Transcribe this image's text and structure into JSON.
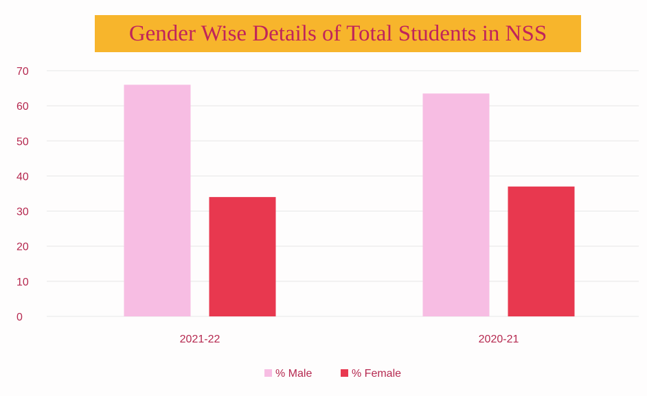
{
  "chart_data": {
    "type": "bar",
    "title": "Gender Wise Details of Total Students in NSS",
    "categories": [
      "2021-22",
      "2020-21"
    ],
    "series": [
      {
        "name": "% Male",
        "values": [
          66,
          63.5
        ]
      },
      {
        "name": "% Female",
        "values": [
          34,
          37
        ]
      }
    ],
    "yticks": [
      "0",
      "10",
      "20",
      "30",
      "40",
      "50",
      "60",
      "70"
    ],
    "ylim": [
      0,
      70
    ],
    "grid": true,
    "legend_position": "bottom",
    "colors": {
      "male": "#f7bde3",
      "female": "#e8384f",
      "title_bg": "#f7b52c",
      "text": "#b5284f",
      "title_text": "#c0245a",
      "grid": "#e6e6e6"
    }
  }
}
